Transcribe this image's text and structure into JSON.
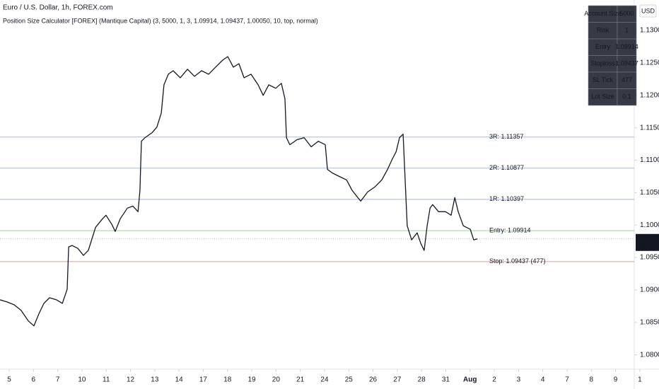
{
  "chart_data": {
    "type": "line",
    "title": "Euro / U.S. Dollar, 1h, FOREX.com",
    "subtitle": "Position Size Calculator [FOREX] (Mantique Capital) (3, 5000, 1, 3, 1.09914, 1.09437, 1.00050, 10, top, normal)",
    "currency": "USD",
    "color": "#131722",
    "grid": false,
    "xlim": [
      -0.38,
      25.77
    ],
    "ylim": [
      1.078,
      1.1347
    ],
    "x": [
      -0.38,
      -0.09,
      0.2,
      0.49,
      0.79,
      1.02,
      1.22,
      1.43,
      1.66,
      1.95,
      2.19,
      2.39,
      2.45,
      2.59,
      2.83,
      3.06,
      3.26,
      3.56,
      3.85,
      3.99,
      4.23,
      4.37,
      4.58,
      4.87,
      5.1,
      5.31,
      5.39,
      5.45,
      5.6,
      5.89,
      6.09,
      6.27,
      6.38,
      6.56,
      6.76,
      7.05,
      7.35,
      7.64,
      7.93,
      8.22,
      8.51,
      8.8,
      9.01,
      9.24,
      9.47,
      9.68,
      9.97,
      10.26,
      10.47,
      10.7,
      10.99,
      11.22,
      11.37,
      11.43,
      11.57,
      11.86,
      12.16,
      12.45,
      12.74,
      13.03,
      13.12,
      13.32,
      13.61,
      13.91,
      14.14,
      14.49,
      14.78,
      15.07,
      15.36,
      15.6,
      15.8,
      15.95,
      16.09,
      16.24,
      16.33,
      16.41,
      16.59,
      16.82,
      16.97,
      17.11,
      17.23,
      17.35,
      17.46,
      17.7,
      17.99,
      18.22,
      18.37,
      18.51,
      18.72,
      19.01,
      19.15,
      19.3
    ],
    "values": [
      1.08848,
      1.08815,
      1.08772,
      1.08685,
      1.08522,
      1.08446,
      1.0863,
      1.08793,
      1.0888,
      1.08848,
      1.08793,
      1.09011,
      1.09663,
      1.09685,
      1.09641,
      1.09533,
      1.09609,
      1.09967,
      1.10098,
      1.10152,
      1.10011,
      1.09902,
      1.10098,
      1.10261,
      1.10293,
      1.10207,
      1.10533,
      1.11293,
      1.11348,
      1.11424,
      1.11511,
      1.11728,
      1.12163,
      1.12326,
      1.1238,
      1.12272,
      1.12402,
      1.12293,
      1.1238,
      1.12326,
      1.12435,
      1.12543,
      1.12598,
      1.12435,
      1.12489,
      1.12272,
      1.12326,
      1.12163,
      1.12,
      1.12163,
      1.12109,
      1.12185,
      1.11946,
      1.11348,
      1.11239,
      1.11315,
      1.11348,
      1.11206,
      1.11293,
      1.11239,
      1.10859,
      1.10804,
      1.1075,
      1.10696,
      1.10533,
      1.10369,
      1.10511,
      1.10587,
      1.10696,
      1.10859,
      1.11022,
      1.1113,
      1.11348,
      1.11402,
      1.10641,
      1.09989,
      1.09772,
      1.0988,
      1.09717,
      1.09609,
      1.09989,
      1.10261,
      1.10315,
      1.10207,
      1.10207,
      1.10152,
      1.10424,
      1.10207,
      1.09989,
      1.09935,
      1.09772,
      1.09787
    ],
    "yticks": [
      {
        "value": 1.13,
        "label": "1.13000"
      },
      {
        "value": 1.125,
        "label": "1.12500"
      },
      {
        "value": 1.12,
        "label": "1.12000"
      },
      {
        "value": 1.115,
        "label": "1.11500"
      },
      {
        "value": 1.11,
        "label": "1.11000"
      },
      {
        "value": 1.105,
        "label": "1.10500"
      },
      {
        "value": 1.1,
        "label": "1.10000"
      },
      {
        "value": 1.095,
        "label": "1.09500"
      },
      {
        "value": 1.09,
        "label": "1.09000"
      },
      {
        "value": 1.085,
        "label": "1.08500"
      },
      {
        "value": 1.08,
        "label": "1.08000"
      }
    ],
    "xticks": [
      {
        "value": 0,
        "label": "5"
      },
      {
        "value": 1,
        "label": "6"
      },
      {
        "value": 2,
        "label": "7"
      },
      {
        "value": 3,
        "label": "10"
      },
      {
        "value": 4,
        "label": "11"
      },
      {
        "value": 5,
        "label": "12"
      },
      {
        "value": 6,
        "label": "13"
      },
      {
        "value": 7,
        "label": "14"
      },
      {
        "value": 8,
        "label": "17"
      },
      {
        "value": 9,
        "label": "18"
      },
      {
        "value": 10,
        "label": "19"
      },
      {
        "value": 11,
        "label": "20"
      },
      {
        "value": 12,
        "label": "21"
      },
      {
        "value": 13,
        "label": "24"
      },
      {
        "value": 14,
        "label": "25"
      },
      {
        "value": 15,
        "label": "26"
      },
      {
        "value": 16,
        "label": "27"
      },
      {
        "value": 17,
        "label": "28"
      },
      {
        "value": 18,
        "label": "31"
      },
      {
        "value": 19,
        "label": "Aug"
      },
      {
        "value": 20,
        "label": "2"
      },
      {
        "value": 21,
        "label": "3"
      },
      {
        "value": 22,
        "label": "4"
      },
      {
        "value": 23,
        "label": "7"
      },
      {
        "value": 24,
        "label": "8"
      },
      {
        "value": 25,
        "label": "9"
      },
      {
        "value": 26,
        "label": "1"
      }
    ],
    "levels": [
      {
        "label": "3R: 1.11357",
        "value": 1.11357,
        "color": "#5b7be0"
      },
      {
        "label": "2R: 1.10877",
        "value": 1.10877,
        "color": "#5b7be0"
      },
      {
        "label": "1R: 1.10397",
        "value": 1.10397,
        "color": "#5b7be0"
      },
      {
        "label": "Entry: 1.09914",
        "value": 1.09914,
        "color": "#4caf50"
      },
      {
        "label": "Stop: 1.09437 (477)",
        "value": 1.09437,
        "color": "#f23645"
      }
    ],
    "last_price": 1.09787,
    "countdown": "03:14",
    "table": {
      "rows": [
        [
          "Account Size",
          5000
        ],
        [
          "Risk",
          1
        ],
        [
          "Entry",
          1.09914
        ],
        [
          "Stoploss",
          1.09437
        ],
        [
          "SL Tick",
          477
        ],
        [
          "Lot Size",
          0.1
        ]
      ]
    }
  }
}
